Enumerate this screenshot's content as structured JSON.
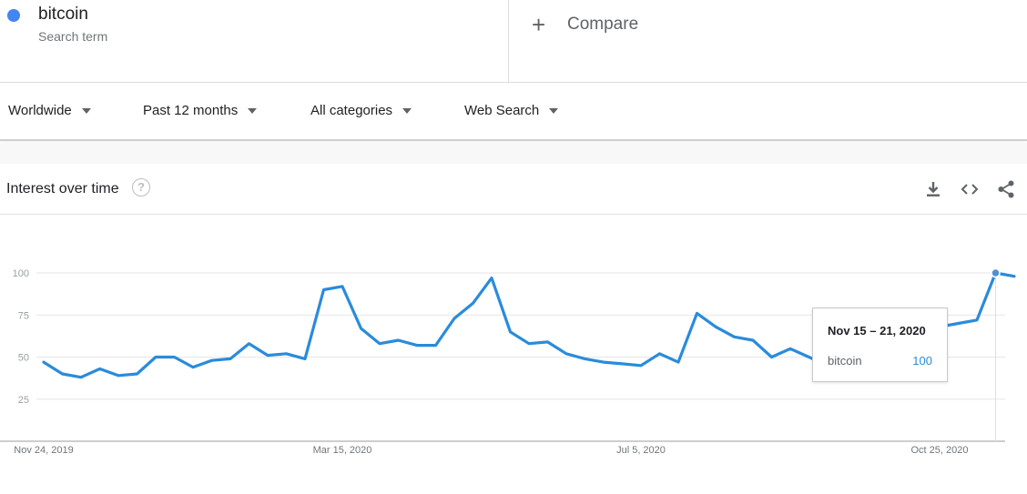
{
  "search_term": {
    "name": "bitcoin",
    "subtitle": "Search term",
    "color": "#4285f4"
  },
  "compare": {
    "label": "Compare",
    "icon": "plus-icon"
  },
  "filters": {
    "region": "Worldwide",
    "time_range": "Past 12 months",
    "category": "All categories",
    "search_type": "Web Search"
  },
  "card": {
    "title": "Interest over time",
    "help_icon": "help-icon",
    "actions": [
      "download-icon",
      "embed-code-icon",
      "share-icon"
    ]
  },
  "tooltip": {
    "date": "Nov 15 – 21, 2020",
    "term": "bitcoin",
    "value": "100"
  },
  "chart_data": {
    "type": "line",
    "line_color": "#2a8bdb",
    "y_ticks": [
      25,
      50,
      75,
      100
    ],
    "ylim": [
      0,
      100
    ],
    "x_tick_labels": [
      "Nov 24, 2019",
      "Mar 15, 2020",
      "Jul 5, 2020",
      "Oct 25, 2020"
    ],
    "x_tick_week_index": [
      0,
      16,
      32,
      48
    ],
    "highlight_week_index": 51,
    "grid": true,
    "series": [
      {
        "name": "bitcoin",
        "values": [
          47,
          40,
          38,
          43,
          39,
          40,
          50,
          50,
          44,
          48,
          49,
          58,
          51,
          52,
          49,
          90,
          92,
          67,
          58,
          60,
          57,
          57,
          73,
          82,
          97,
          65,
          58,
          59,
          52,
          49,
          47,
          46,
          45,
          52,
          47,
          76,
          68,
          62,
          60,
          50,
          55,
          50,
          45,
          42,
          40,
          40,
          43,
          55,
          68,
          70,
          72,
          100,
          98
        ]
      }
    ]
  }
}
